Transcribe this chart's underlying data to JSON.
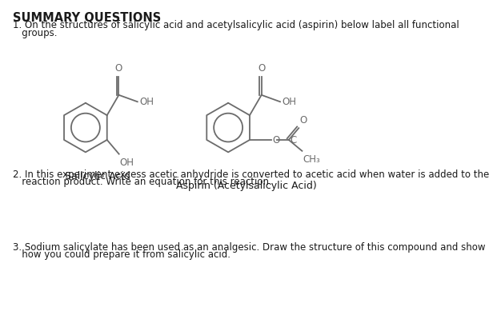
{
  "title": "SUMMARY QUESTIONS",
  "q1_line1": "1. On the structures of salicylic acid and acetylsalicylic acid (aspirin) below label all functional",
  "q1_line2": "   groups.",
  "label_salicylic": "Salicylic Acid",
  "label_aspirin": "Aspirin (Acetylsalicylic Acid)",
  "q2_line1": "2. In this experiment excess acetic anhydride is converted to acetic acid when water is added to the",
  "q2_line2": "   reaction product. Write an equation for this reaction.",
  "q3_line1": "3. Sodium salicylate has been used as an analgesic. Draw the structure of this compound and show",
  "q3_line2": "   how you could prepare it from salicylic acid.",
  "bg_color": "#ffffff",
  "line_color": "#6b6b6b",
  "text_color": "#1a1a1a",
  "font_size_title": 10.5,
  "font_size_body": 8.5,
  "font_size_label": 9,
  "font_size_atom": 8.5
}
